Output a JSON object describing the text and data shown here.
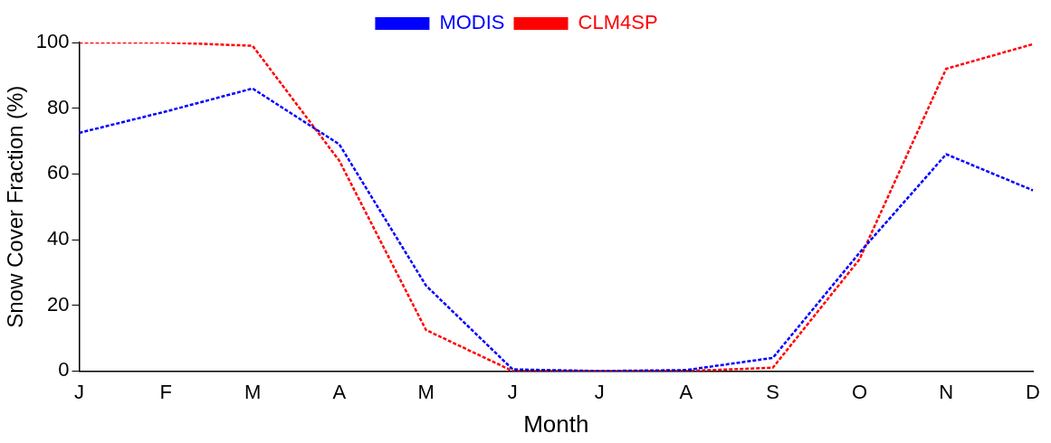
{
  "chart_data": {
    "type": "line",
    "xlabel": "Month",
    "ylabel": "Snow Cover Fraction (%)",
    "categories": [
      "J",
      "F",
      "M",
      "A",
      "M",
      "J",
      "J",
      "A",
      "S",
      "O",
      "N",
      "D"
    ],
    "series": [
      {
        "name": "MODIS",
        "color": "#0000ff",
        "values": [
          72.5,
          79,
          86,
          69,
          26,
          0.5,
          0,
          0.3,
          4,
          36,
          66,
          55
        ]
      },
      {
        "name": "CLM4SP",
        "color": "#ff0000",
        "values": [
          100,
          100,
          99,
          64,
          12.5,
          0,
          0,
          0,
          1,
          34,
          92,
          99.5
        ]
      }
    ],
    "ylim": [
      0,
      100
    ],
    "yticks": [
      0,
      20,
      40,
      60,
      80,
      100
    ],
    "grid": false,
    "legend": "top",
    "marker": "none",
    "line_style": "dashed"
  }
}
